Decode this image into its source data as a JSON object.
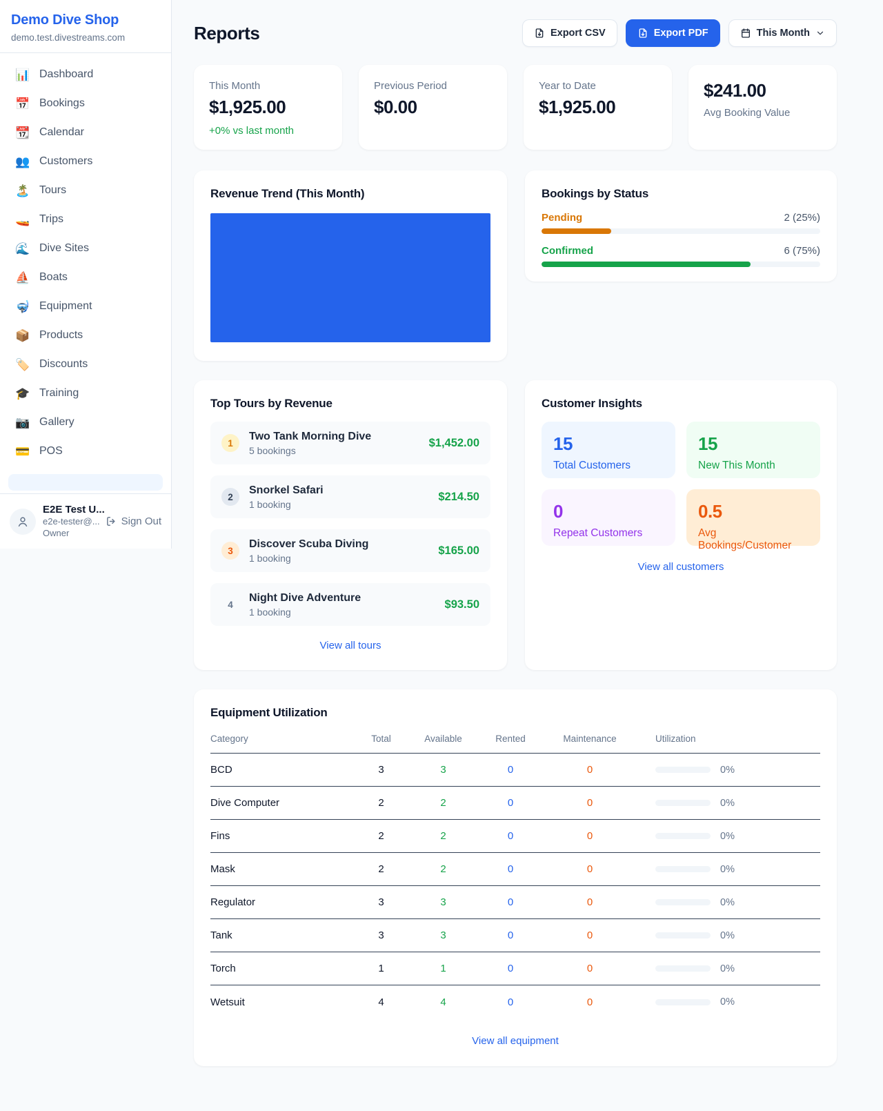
{
  "colors": {
    "accent_blue": "#2563eb",
    "green": "#16a34a",
    "amber": "#d97706",
    "orange": "#ea580c",
    "purple": "#9333ea",
    "page_bg": "#f8fafc"
  },
  "sidebar": {
    "shop_name": "Demo Dive Shop",
    "shop_domain": "demo.test.divestreams.com",
    "items": [
      {
        "icon": "📊",
        "label": "Dashboard"
      },
      {
        "icon": "📅",
        "label": "Bookings"
      },
      {
        "icon": "📆",
        "label": "Calendar"
      },
      {
        "icon": "👥",
        "label": "Customers"
      },
      {
        "icon": "🏝️",
        "label": "Tours"
      },
      {
        "icon": "🚤",
        "label": "Trips"
      },
      {
        "icon": "🌊",
        "label": "Dive Sites"
      },
      {
        "icon": "⛵",
        "label": "Boats"
      },
      {
        "icon": "🤿",
        "label": "Equipment"
      },
      {
        "icon": "📦",
        "label": "Products"
      },
      {
        "icon": "🏷️",
        "label": "Discounts"
      },
      {
        "icon": "🎓",
        "label": "Training"
      },
      {
        "icon": "📷",
        "label": "Gallery"
      },
      {
        "icon": "💳",
        "label": "POS"
      }
    ],
    "user": {
      "name": "E2E Test U...",
      "email": "e2e-tester@...",
      "role": "Owner",
      "sign_out_label": "Sign Out"
    }
  },
  "header": {
    "title": "Reports",
    "export_csv_label": "Export CSV",
    "export_pdf_label": "Export PDF",
    "period_label": "This Month"
  },
  "stats": [
    {
      "label": "This Month",
      "value": "$1,925.00",
      "delta": "+0% vs last month"
    },
    {
      "label": "Previous Period",
      "value": "$0.00"
    },
    {
      "label": "Year to Date",
      "value": "$1,925.00"
    },
    {
      "label": "Avg Booking Value",
      "value": "$241.00"
    }
  ],
  "revenue_trend": {
    "title": "Revenue Trend (This Month)"
  },
  "chart_data": {
    "type": "bar",
    "title": "Revenue Trend (This Month)",
    "note": "single solid blue bar filling the full plot area",
    "series": [
      {
        "name": "Revenue",
        "values": [
          1925
        ]
      }
    ],
    "categories": [
      "This Month"
    ]
  },
  "bookings_by_status": {
    "title": "Bookings by Status",
    "rows": [
      {
        "label": "Pending",
        "count_text": "2 (25%)",
        "percent": 25
      },
      {
        "label": "Confirmed",
        "count_text": "6 (75%)",
        "percent": 75
      }
    ]
  },
  "top_tours": {
    "title": "Top Tours by Revenue",
    "rows": [
      {
        "rank": "1",
        "name": "Two Tank Morning Dive",
        "bookings": "5 bookings",
        "amount": "$1,452.00"
      },
      {
        "rank": "2",
        "name": "Snorkel Safari",
        "bookings": "1 booking",
        "amount": "$214.50"
      },
      {
        "rank": "3",
        "name": "Discover Scuba Diving",
        "bookings": "1 booking",
        "amount": "$165.00"
      },
      {
        "rank": "4",
        "name": "Night Dive Adventure",
        "bookings": "1 booking",
        "amount": "$93.50"
      }
    ],
    "view_all_label": "View all tours"
  },
  "customer_insights": {
    "title": "Customer Insights",
    "tiles": [
      {
        "value": "15",
        "label": "Total Customers"
      },
      {
        "value": "15",
        "label": "New This Month"
      },
      {
        "value": "0",
        "label": "Repeat Customers"
      },
      {
        "value": "0.5",
        "label": "Avg Bookings/Customer"
      }
    ],
    "view_all_label": "View all customers"
  },
  "equipment": {
    "title": "Equipment Utilization",
    "columns": [
      "Category",
      "Total",
      "Available",
      "Rented",
      "Maintenance",
      "Utilization"
    ],
    "rows": [
      {
        "category": "BCD",
        "total": "3",
        "available": "3",
        "rented": "0",
        "maintenance": "0",
        "utilization_text": "0%",
        "utilization_pct": 0
      },
      {
        "category": "Dive Computer",
        "total": "2",
        "available": "2",
        "rented": "0",
        "maintenance": "0",
        "utilization_text": "0%",
        "utilization_pct": 0
      },
      {
        "category": "Fins",
        "total": "2",
        "available": "2",
        "rented": "0",
        "maintenance": "0",
        "utilization_text": "0%",
        "utilization_pct": 0
      },
      {
        "category": "Mask",
        "total": "2",
        "available": "2",
        "rented": "0",
        "maintenance": "0",
        "utilization_text": "0%",
        "utilization_pct": 0
      },
      {
        "category": "Regulator",
        "total": "3",
        "available": "3",
        "rented": "0",
        "maintenance": "0",
        "utilization_text": "0%",
        "utilization_pct": 0
      },
      {
        "category": "Tank",
        "total": "3",
        "available": "3",
        "rented": "0",
        "maintenance": "0",
        "utilization_text": "0%",
        "utilization_pct": 0
      },
      {
        "category": "Torch",
        "total": "1",
        "available": "1",
        "rented": "0",
        "maintenance": "0",
        "utilization_text": "0%",
        "utilization_pct": 0
      },
      {
        "category": "Wetsuit",
        "total": "4",
        "available": "4",
        "rented": "0",
        "maintenance": "0",
        "utilization_text": "0%",
        "utilization_pct": 0
      }
    ],
    "view_all_label": "View all equipment"
  }
}
